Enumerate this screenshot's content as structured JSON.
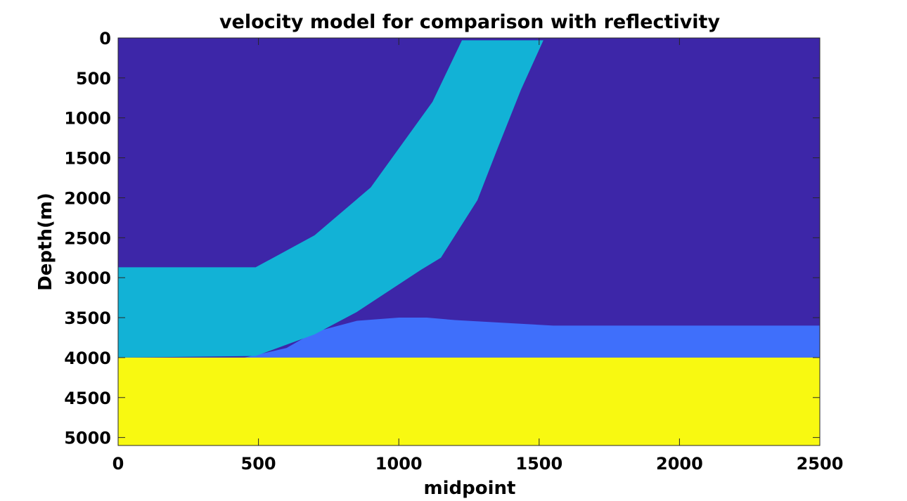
{
  "chart_data": {
    "type": "heatmap",
    "title": "velocity model for comparison with reflectivity",
    "xlabel": "midpoint",
    "ylabel": "Depth(m)",
    "xlim": [
      0,
      2500
    ],
    "ylim": [
      0,
      5100
    ],
    "y_reversed": true,
    "x_ticks": [
      0,
      500,
      1000,
      1500,
      2000,
      2500
    ],
    "y_ticks": [
      0,
      500,
      1000,
      1500,
      2000,
      2500,
      3000,
      3500,
      4000,
      4500,
      5000
    ],
    "grid": false,
    "regions": [
      {
        "name": "background",
        "color": "#3d26a8",
        "polygon": [
          [
            0,
            0
          ],
          [
            2500,
            0
          ],
          [
            2500,
            5100
          ],
          [
            0,
            5100
          ]
        ]
      },
      {
        "name": "deep layer",
        "color": "#3f6ffb",
        "polygon": [
          [
            450,
            4000
          ],
          [
            600,
            3880
          ],
          [
            700,
            3680
          ],
          [
            850,
            3540
          ],
          [
            1000,
            3500
          ],
          [
            1100,
            3500
          ],
          [
            1200,
            3530
          ],
          [
            1400,
            3570
          ],
          [
            1550,
            3600
          ],
          [
            2500,
            3600
          ],
          [
            2500,
            4000
          ]
        ]
      },
      {
        "name": "dipping layer",
        "color": "#12b2d6",
        "polygon": [
          [
            0,
            2870
          ],
          [
            490,
            2870
          ],
          [
            700,
            2470
          ],
          [
            900,
            1870
          ],
          [
            1120,
            800
          ],
          [
            1225,
            30
          ],
          [
            1515,
            30
          ],
          [
            1435,
            650
          ],
          [
            1350,
            1400
          ],
          [
            1280,
            2030
          ],
          [
            1150,
            2750
          ],
          [
            1080,
            2900
          ],
          [
            850,
            3430
          ],
          [
            700,
            3710
          ],
          [
            490,
            3980
          ],
          [
            0,
            4000
          ]
        ]
      },
      {
        "name": "halfspace",
        "color": "#f8f911",
        "polygon": [
          [
            0,
            4000
          ],
          [
            2500,
            4000
          ],
          [
            2500,
            5100
          ],
          [
            0,
            5100
          ]
        ]
      }
    ]
  }
}
